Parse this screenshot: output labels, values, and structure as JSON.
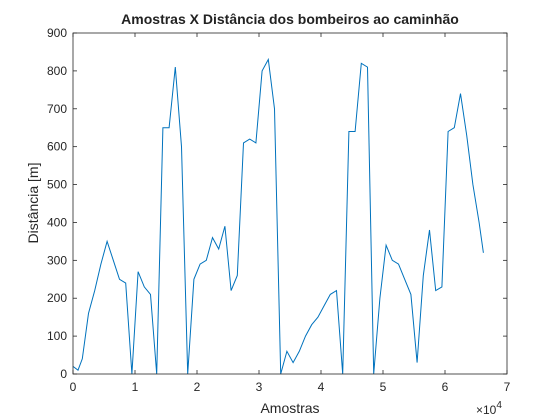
{
  "chart_data": {
    "type": "line",
    "title": "Amostras X Distância dos bombeiros ao caminhão",
    "xlabel": "Amostras",
    "ylabel": "Distância [m]",
    "xlim": [
      0,
      7
    ],
    "ylim": [
      0,
      900
    ],
    "x_multiplier_label": "×10",
    "x_multiplier_exponent": "4",
    "xticks": [
      "0",
      "1",
      "2",
      "3",
      "4",
      "5",
      "6",
      "7"
    ],
    "yticks": [
      "0",
      "100",
      "200",
      "300",
      "400",
      "500",
      "600",
      "700",
      "800",
      "900"
    ],
    "grid": false,
    "legend": "none",
    "series_color": "#0072BD",
    "series": [
      {
        "x": [
          0.0,
          0.08,
          0.15,
          0.25,
          0.35,
          0.45,
          0.55,
          0.65,
          0.75,
          0.85,
          0.95,
          1.05,
          1.15,
          1.25,
          1.35,
          1.45,
          1.55,
          1.65,
          1.75,
          1.85,
          1.95,
          2.05,
          2.15,
          2.25,
          2.35,
          2.45,
          2.55,
          2.65,
          2.75,
          2.85,
          2.95,
          3.05,
          3.15,
          3.25,
          3.35,
          3.45,
          3.55,
          3.65,
          3.75,
          3.85,
          3.95,
          4.05,
          4.15,
          4.25,
          4.35,
          4.45,
          4.55,
          4.65,
          4.75,
          4.85,
          4.95,
          5.05,
          5.15,
          5.25,
          5.35,
          5.45,
          5.55,
          5.65,
          5.75,
          5.85,
          5.95,
          6.05,
          6.15,
          6.25,
          6.35,
          6.45,
          6.55,
          6.62
        ],
        "y": [
          20,
          10,
          40,
          160,
          220,
          290,
          350,
          300,
          250,
          240,
          0,
          270,
          230,
          210,
          0,
          650,
          650,
          810,
          600,
          0,
          250,
          290,
          300,
          360,
          330,
          390,
          220,
          260,
          610,
          620,
          610,
          800,
          830,
          700,
          0,
          60,
          30,
          60,
          100,
          130,
          150,
          180,
          210,
          220,
          0,
          640,
          640,
          820,
          810,
          0,
          200,
          340,
          300,
          290,
          250,
          210,
          30,
          260,
          380,
          220,
          230,
          640,
          650,
          740,
          630,
          500,
          400,
          320
        ]
      }
    ]
  }
}
